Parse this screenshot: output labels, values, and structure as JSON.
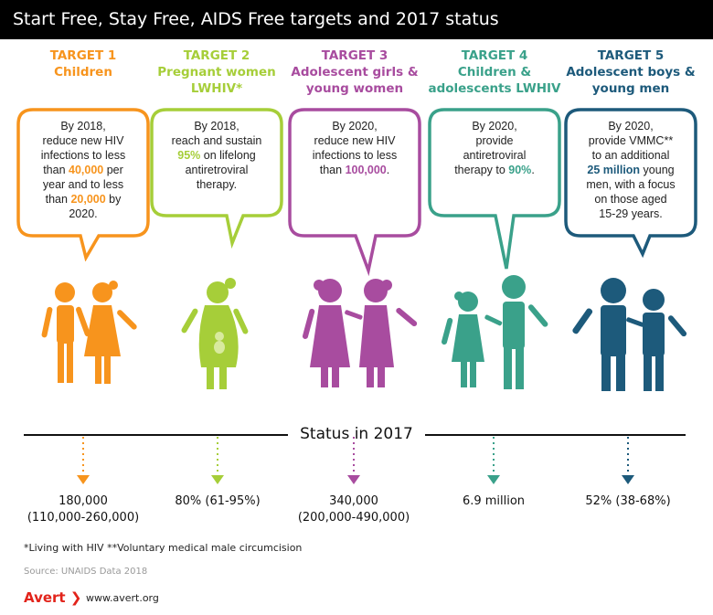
{
  "title": "Start Free, Stay Free, AIDS Free targets and 2017 status",
  "status_title": "Status in 2017",
  "footnote": "*Living with HIV  **Voluntary medical male circumcision",
  "source": "Source: UNAIDS Data 2018",
  "brand": {
    "name": "Avert",
    "mark": "❯",
    "url": "www.avert.org"
  },
  "colors": {
    "t1": "#f7941d",
    "t2": "#a6ce39",
    "t3": "#a84c9f",
    "t4": "#3aa18a",
    "t5": "#1d5a7b"
  },
  "targets": [
    {
      "label": "TARGET 1",
      "group": "Children",
      "bubble": [
        "By 2018,",
        "reduce new HIV",
        "infections to less",
        "than ",
        "40,000",
        " per",
        "year and to less",
        "than ",
        "20,000",
        " by",
        "2020."
      ],
      "status": "180,000",
      "status_range": "(110,000-260,000)"
    },
    {
      "label": "TARGET 2",
      "group": "Pregnant women LWHIV*",
      "bubble": [
        "By 2018,",
        "reach and sustain",
        "95%",
        " on lifelong",
        "antiretroviral",
        "therapy."
      ],
      "status": "80% (61-95%)",
      "status_range": ""
    },
    {
      "label": "TARGET 3",
      "group": "Adolescent girls & young women",
      "bubble": [
        "By 2020,",
        "reduce new HIV",
        "infections to less",
        "than ",
        "100,000",
        "."
      ],
      "status": "340,000",
      "status_range": "(200,000-490,000)"
    },
    {
      "label": "TARGET 4",
      "group": "Children & adolescents LWHIV",
      "bubble": [
        "By 2020,",
        "provide",
        "antiretroviral",
        "therapy to ",
        "90%",
        "."
      ],
      "status": "6.9 million",
      "status_range": ""
    },
    {
      "label": "TARGET 5",
      "group": "Adolescent boys & young men",
      "bubble": [
        "By 2020,",
        "provide VMMC**",
        "to an additional",
        "25 million",
        " young",
        "men, with a focus",
        "on those aged",
        "15-29 years."
      ],
      "status": "52% (38-68%)",
      "status_range": ""
    }
  ]
}
